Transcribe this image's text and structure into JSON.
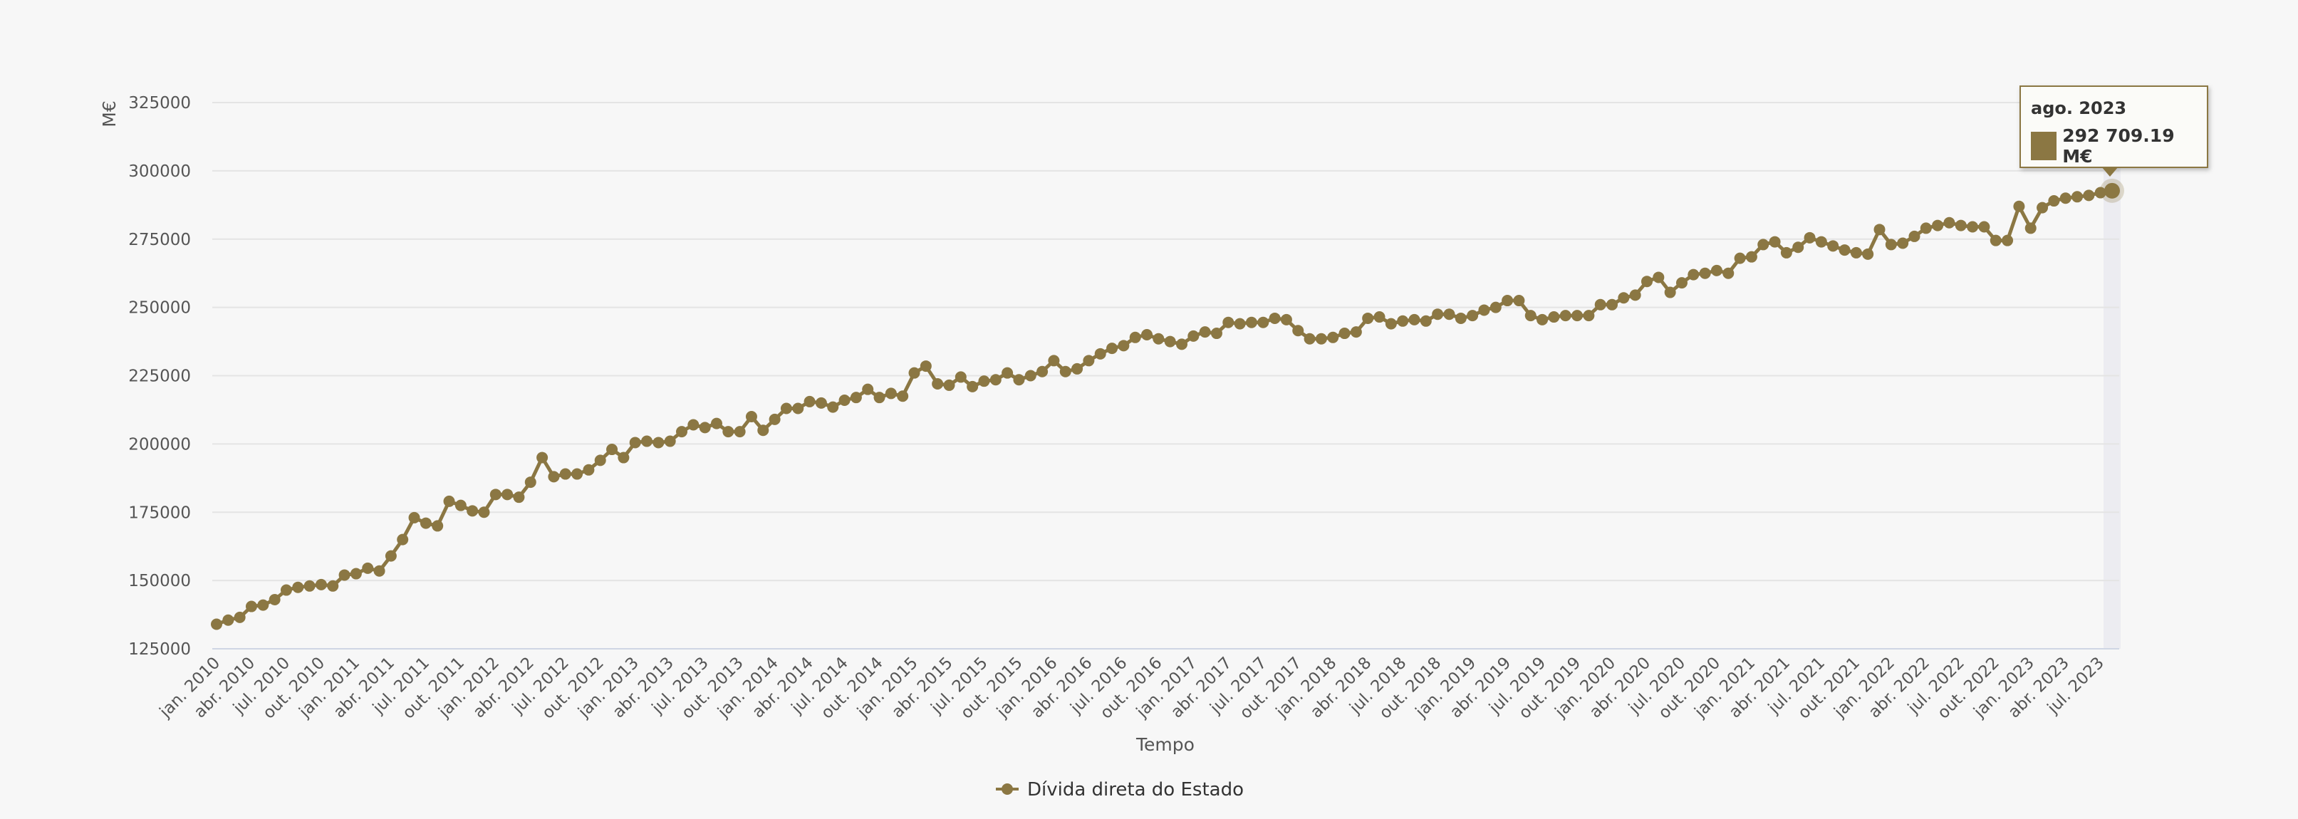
{
  "chart_data": {
    "type": "line",
    "title": "",
    "xlabel": "Tempo",
    "ylabel": "M€",
    "ylim": [
      125000,
      325000
    ],
    "y_ticks": [
      125000,
      150000,
      175000,
      200000,
      225000,
      250000,
      275000,
      300000,
      325000
    ],
    "y_tick_labels": [
      "125000",
      "150000",
      "175000",
      "200000",
      "225000",
      "250000",
      "275000",
      "300000",
      "325000"
    ],
    "x_tick_labels": [
      "jan. 2010",
      "abr. 2010",
      "jul. 2010",
      "out. 2010",
      "jan. 2011",
      "abr. 2011",
      "jul. 2011",
      "out. 2011",
      "jan. 2012",
      "abr. 2012",
      "jul. 2012",
      "out. 2012",
      "jan. 2013",
      "abr. 2013",
      "jul. 2013",
      "out. 2013",
      "jan. 2014",
      "abr. 2014",
      "jul. 2014",
      "out. 2014",
      "jan. 2015",
      "abr. 2015",
      "jul. 2015",
      "out. 2015",
      "jan. 2016",
      "abr. 2016",
      "jul. 2016",
      "out. 2016",
      "jan. 2017",
      "abr. 2017",
      "jul. 2017",
      "out. 2017",
      "jan. 2018",
      "abr. 2018",
      "jul. 2018",
      "out. 2018",
      "jan. 2019",
      "abr. 2019",
      "jul. 2019",
      "out. 2019",
      "jan. 2020",
      "abr. 2020",
      "jul. 2020",
      "out. 2020",
      "jan. 2021",
      "abr. 2021",
      "jul. 2021",
      "out. 2021",
      "jan. 2022",
      "abr. 2022",
      "jul. 2022",
      "out. 2022",
      "jan. 2023",
      "abr. 2023",
      "jul. 2023"
    ],
    "grid": true,
    "legend_position": "bottom-center",
    "colors": {
      "series": "#8b7743",
      "grid": "#e4e4e4",
      "background": "#f7f7f7",
      "highlight_band": "#ececf1"
    },
    "series": [
      {
        "name": "Dívida direta do Estado",
        "start": "jan. 2010",
        "frequency": "monthly",
        "values": [
          134000,
          135500,
          136500,
          140500,
          141000,
          143000,
          146500,
          147500,
          148000,
          148500,
          148000,
          152000,
          152500,
          154500,
          153500,
          159000,
          165000,
          173000,
          171000,
          170000,
          179000,
          177500,
          175500,
          175000,
          181500,
          181500,
          180500,
          186000,
          195000,
          188000,
          189000,
          189000,
          190500,
          194000,
          198000,
          195000,
          200500,
          201000,
          200500,
          201000,
          204500,
          207000,
          206000,
          207500,
          204500,
          204500,
          210000,
          205000,
          209000,
          213000,
          213000,
          215500,
          215000,
          213500,
          216000,
          217000,
          220000,
          217000,
          218500,
          217500,
          226000,
          228500,
          222000,
          221500,
          224500,
          221000,
          223000,
          223500,
          226000,
          223500,
          225000,
          226500,
          230500,
          226500,
          227500,
          230500,
          233000,
          235000,
          236000,
          239000,
          240000,
          238500,
          237500,
          236500,
          239500,
          241000,
          240500,
          244500,
          244000,
          244500,
          244500,
          246000,
          245500,
          241500,
          238500,
          238500,
          239000,
          240500,
          241000,
          246000,
          246500,
          244000,
          245000,
          245500,
          245000,
          247500,
          247500,
          246000,
          247000,
          249000,
          250000,
          252500,
          252500,
          247000,
          245500,
          246500,
          247000,
          247000,
          247000,
          251000,
          251000,
          253500,
          254500,
          259500,
          261000,
          255500,
          259000,
          262000,
          262500,
          263500,
          262500,
          268000,
          268500,
          273000,
          274000,
          270000,
          272000,
          275500,
          274000,
          272500,
          271000,
          270000,
          269500,
          278500,
          273000,
          273500,
          276000,
          279000,
          280000,
          281000,
          280000,
          279500,
          279500,
          274500,
          274500,
          287000,
          279000,
          286500,
          289000,
          290000,
          290500,
          291000,
          292000,
          292709.19
        ]
      }
    ],
    "tooltip": {
      "title": "ago. 2023",
      "value_text": "292 709.19 M€"
    }
  }
}
